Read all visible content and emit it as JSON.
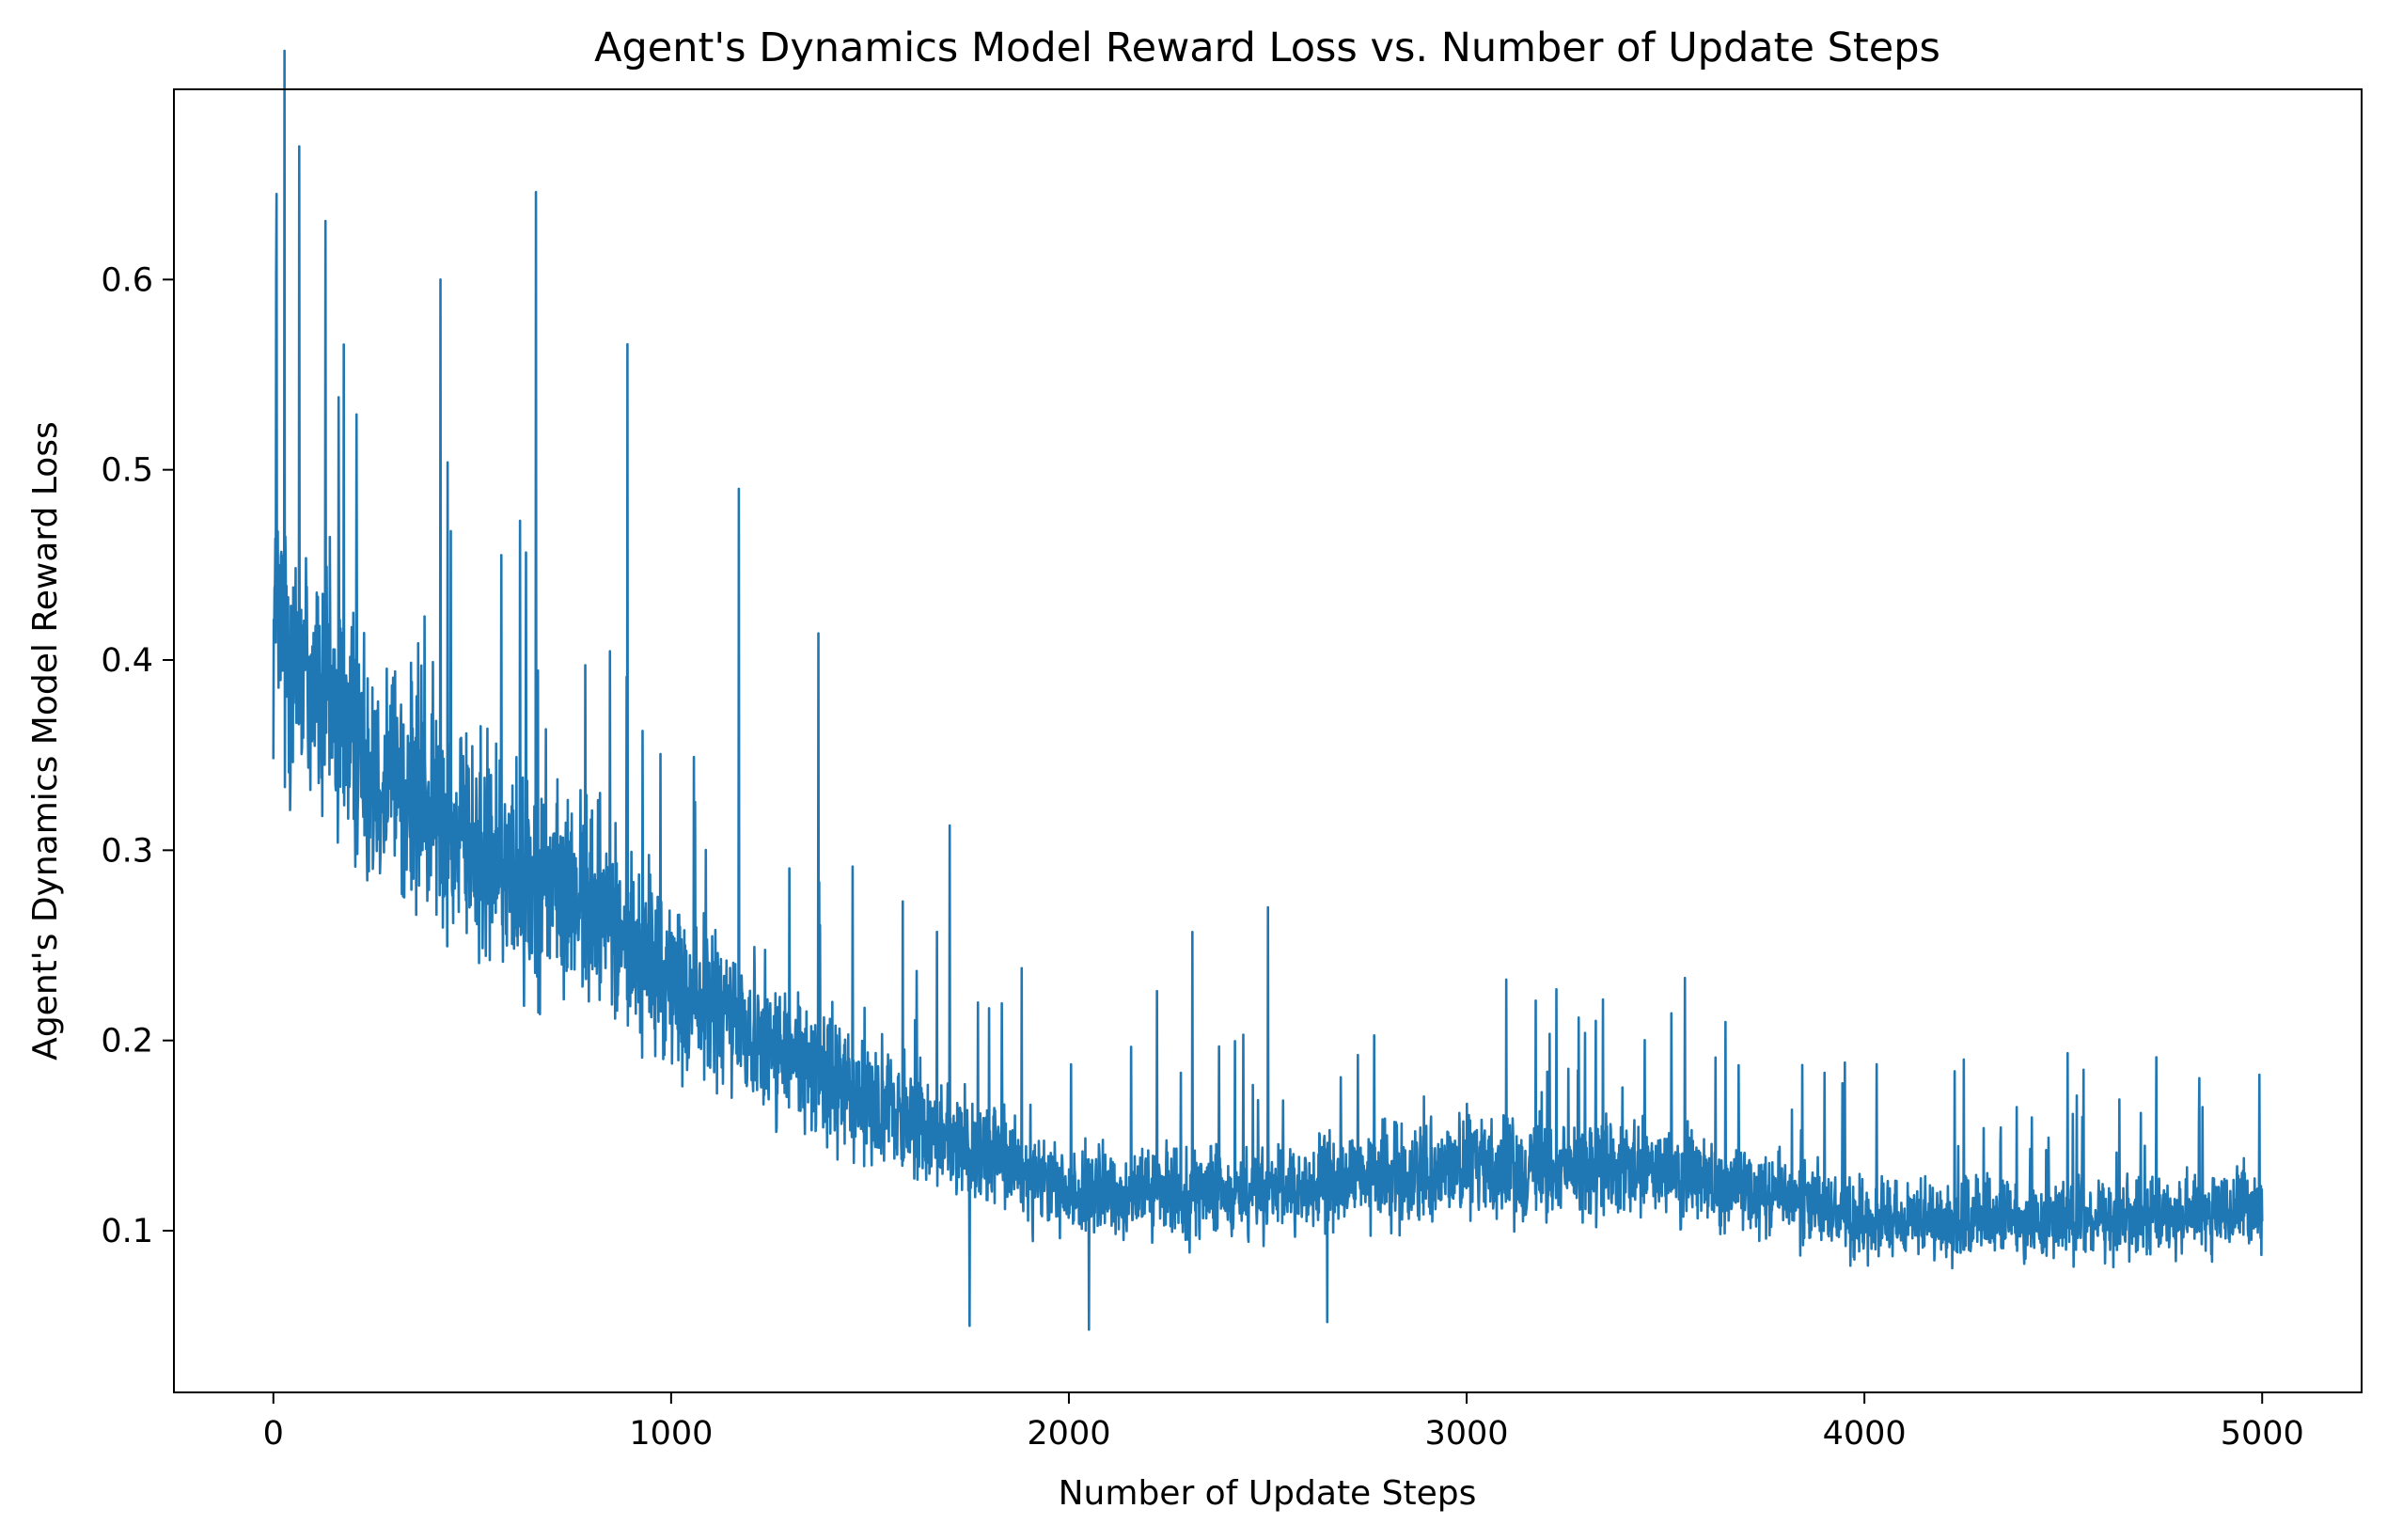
{
  "chart_data": {
    "type": "line",
    "title": "Agent's Dynamics Model Reward Loss vs. Number of Update Steps",
    "xlabel": "Number of Update Steps",
    "ylabel": "Agent's Dynamics Model Reward Loss",
    "xlim": [
      -250,
      5250
    ],
    "ylim": [
      0.015,
      0.7
    ],
    "xticks": [
      0,
      1000,
      2000,
      3000,
      4000,
      5000
    ],
    "yticks": [
      0.1,
      0.2,
      0.3,
      0.4,
      0.5,
      0.6
    ],
    "grid": false,
    "legend": "none",
    "series": [
      {
        "color": "#1f77b4",
        "x_start": 0,
        "x_end": 5000,
        "num_points": 5000,
        "trend_x": [
          0,
          200,
          500,
          800,
          1000,
          1300,
          1600,
          2000,
          2500,
          3000,
          3500,
          3800,
          4000,
          4500,
          5000
        ],
        "trend_y": [
          0.42,
          0.36,
          0.3,
          0.27,
          0.23,
          0.19,
          0.16,
          0.12,
          0.12,
          0.135,
          0.13,
          0.12,
          0.105,
          0.105,
          0.11
        ],
        "peaks": [
          {
            "x": 8,
            "y": 0.645
          },
          {
            "x": 65,
            "y": 0.67
          },
          {
            "x": 420,
            "y": 0.6
          },
          {
            "x": 660,
            "y": 0.646
          },
          {
            "x": 890,
            "y": 0.566
          },
          {
            "x": 1170,
            "y": 0.49
          },
          {
            "x": 1370,
            "y": 0.414
          },
          {
            "x": 1700,
            "y": 0.313
          },
          {
            "x": 2310,
            "y": 0.257
          },
          {
            "x": 2500,
            "y": 0.27
          },
          {
            "x": 3100,
            "y": 0.232
          },
          {
            "x": 3900,
            "y": 0.183
          },
          {
            "x": 4250,
            "y": 0.19
          },
          {
            "x": 4850,
            "y": 0.165
          }
        ],
        "troughs": [
          {
            "x": 1750,
            "y": 0.05
          },
          {
            "x": 2050,
            "y": 0.048
          },
          {
            "x": 2650,
            "y": 0.052
          }
        ]
      }
    ]
  }
}
